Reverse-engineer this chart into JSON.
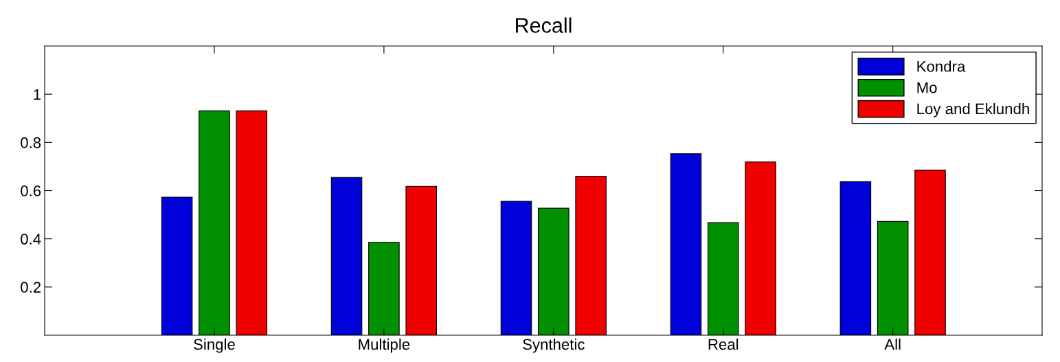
{
  "chart_data": {
    "type": "bar",
    "title": "Recall",
    "categories": [
      "Single",
      "Multiple",
      "Synthetic",
      "Real",
      "All"
    ],
    "series": [
      {
        "name": "Kondra",
        "color": "#0000d8",
        "values": [
          0.573,
          0.655,
          0.556,
          0.753,
          0.637
        ]
      },
      {
        "name": "Mo",
        "color": "#009000",
        "values": [
          0.931,
          0.385,
          0.527,
          0.467,
          0.472
        ]
      },
      {
        "name": "Loy and Eklundh",
        "color": "#f00000",
        "values": [
          0.931,
          0.618,
          0.66,
          0.719,
          0.685
        ]
      }
    ],
    "ylim": [
      0,
      1.2
    ],
    "yticks": [
      0.2,
      0.4,
      0.6,
      0.8,
      1
    ],
    "grid": false,
    "legend": "top right"
  }
}
